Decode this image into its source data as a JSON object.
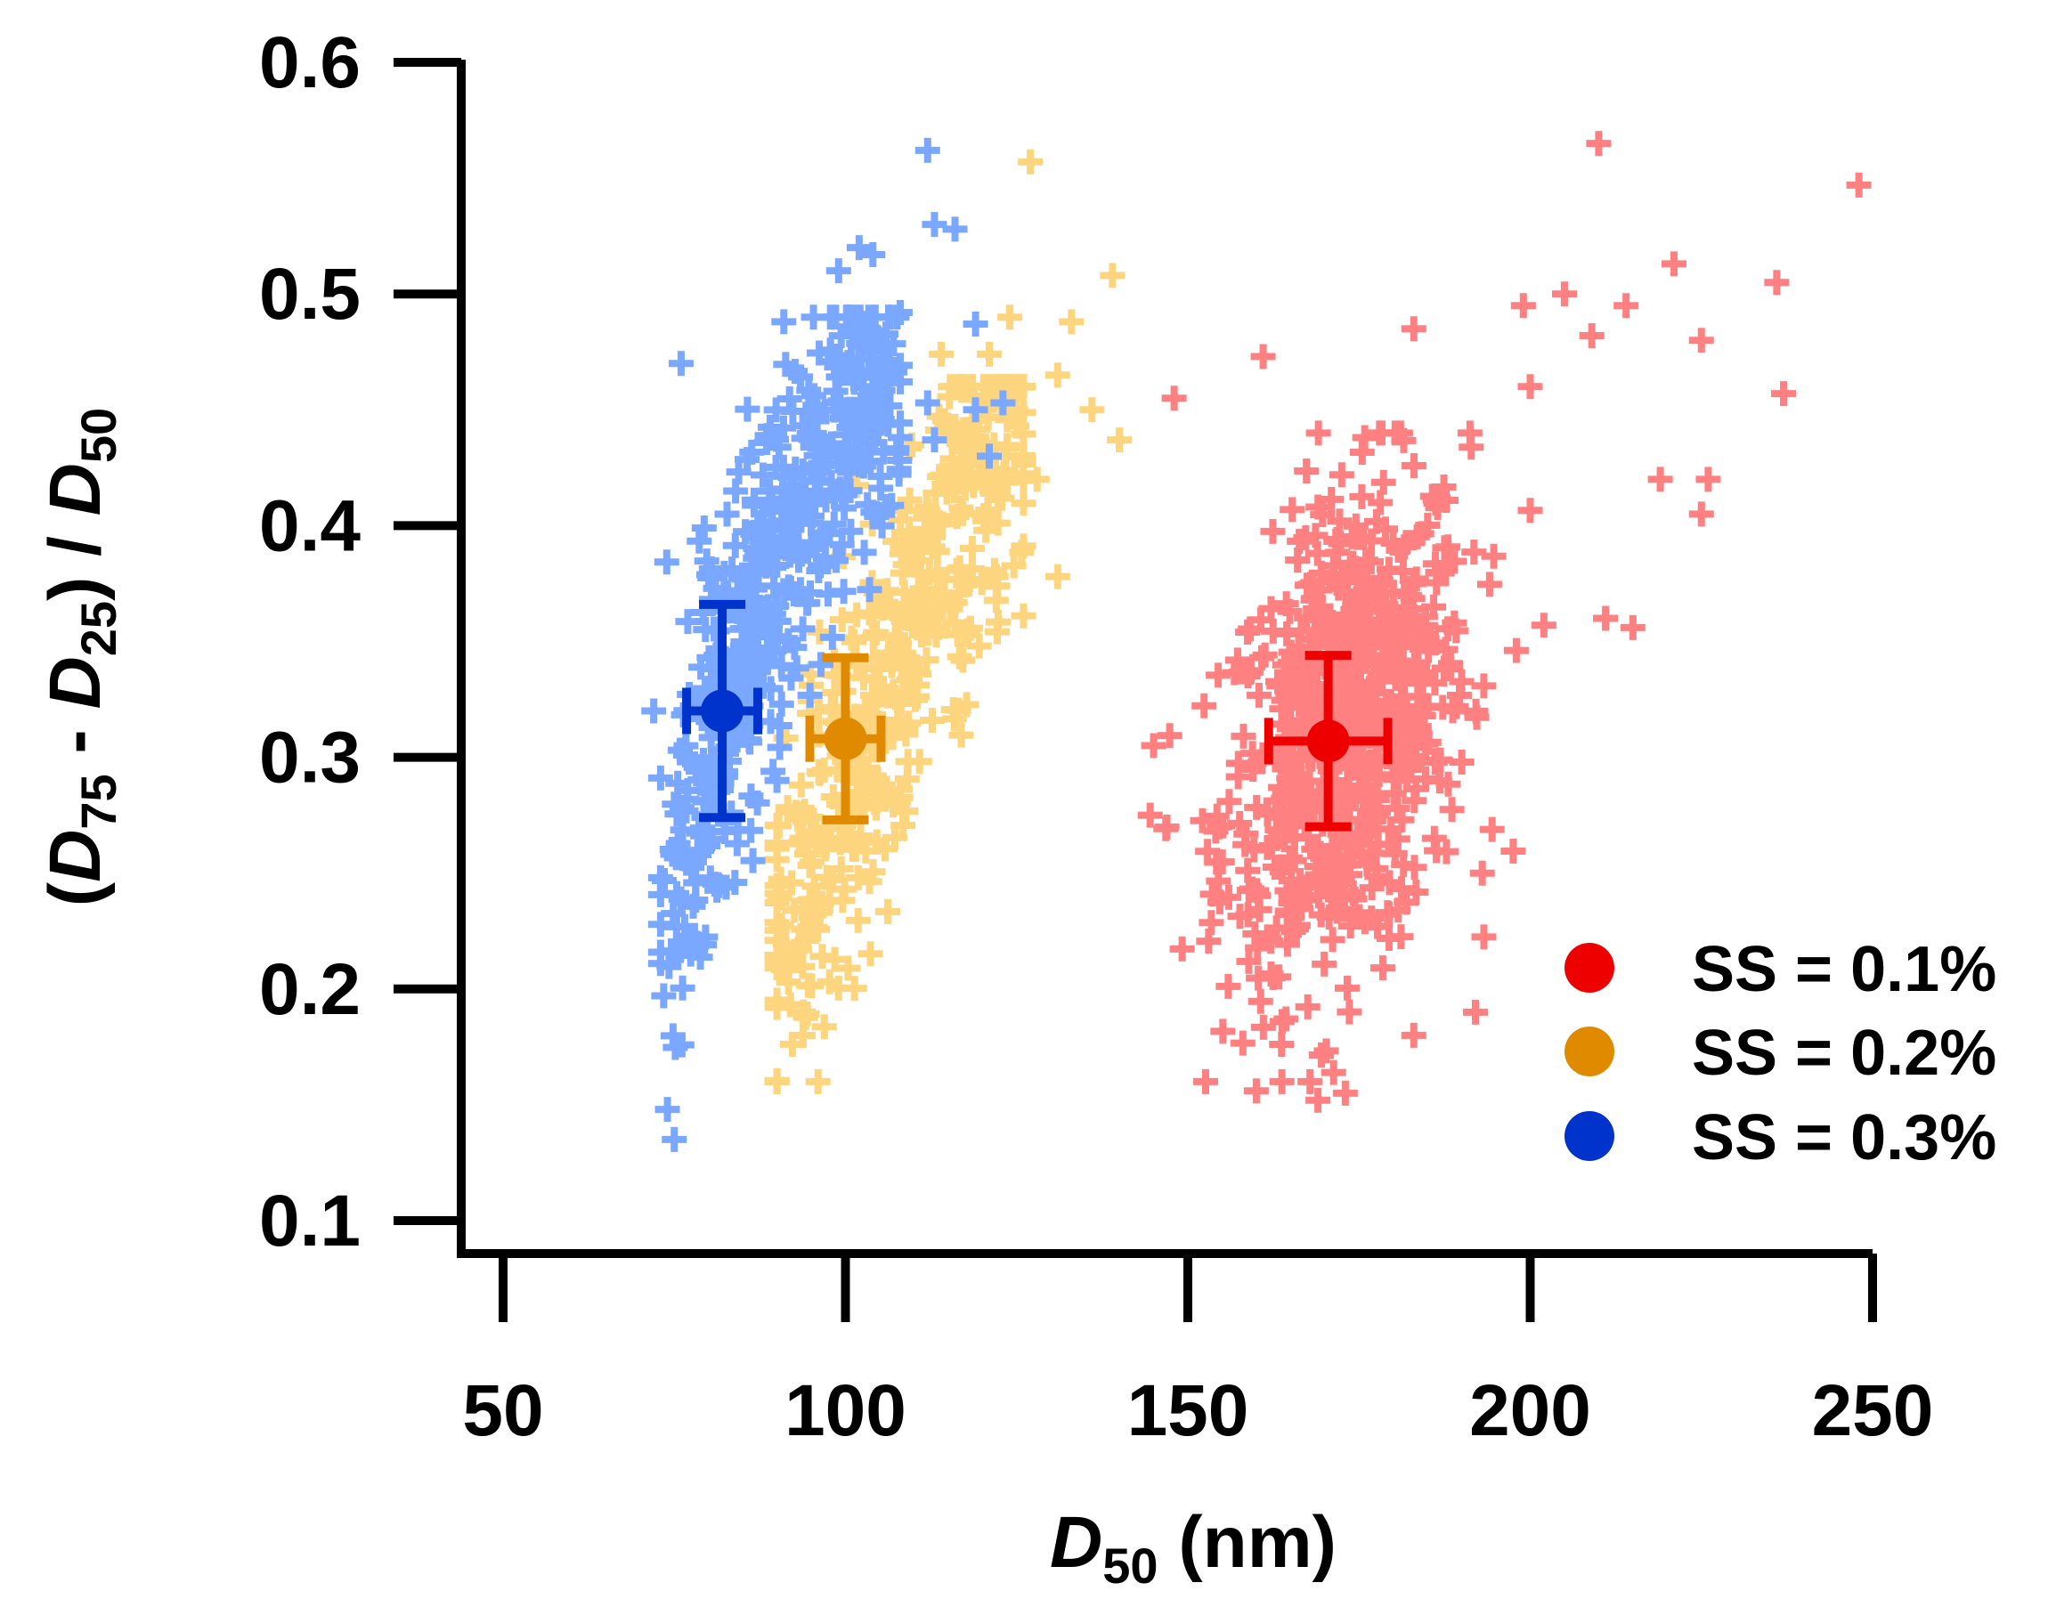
{
  "chart_data": {
    "type": "scatter",
    "title": "",
    "xlabel": {
      "italic": "D",
      "sub": "50",
      "unit": " (nm)"
    },
    "ylabel": {
      "open": "(",
      "d1": "D",
      "s1": "75",
      "minus": " - ",
      "d2": "D",
      "s2": "25",
      "close": ") / ",
      "d3": "D",
      "s3": "50"
    },
    "xlim": [
      45,
      250
    ],
    "ylim": [
      0.1,
      0.6
    ],
    "xticks": [
      50,
      100,
      150,
      200,
      250
    ],
    "xtick_labels": [
      "50",
      "100",
      "150",
      "200",
      "250"
    ],
    "yticks": [
      0.1,
      0.2,
      0.3,
      0.4,
      0.5,
      0.6
    ],
    "ytick_labels": [
      "0.1",
      "0.2",
      "0.3",
      "0.4",
      "0.5",
      "0.6"
    ],
    "series": [
      {
        "name": "SS = 0.1%",
        "scatter_color": "#ff8080",
        "mean_color": "#ee0000",
        "mean": {
          "x": 170.5,
          "y": 0.307,
          "xerr": 8.7,
          "yerr": 0.037
        },
        "cluster": {
          "x_range": [
            145,
            200
          ],
          "y_range": [
            0.16,
            0.44
          ],
          "center_x": 173,
          "center_y": 0.31,
          "count": 700
        },
        "points": [
          [
            144.5,
            0.275
          ],
          [
            148,
            0.455
          ],
          [
            161,
            0.473
          ],
          [
            178,
            0.44
          ],
          [
            183,
            0.485
          ],
          [
            199,
            0.495
          ],
          [
            200,
            0.46
          ],
          [
            205,
            0.5
          ],
          [
            209,
            0.482
          ],
          [
            210,
            0.565
          ],
          [
            214,
            0.495
          ],
          [
            221,
            0.513
          ],
          [
            225,
            0.48
          ],
          [
            236,
            0.505
          ],
          [
            237,
            0.457
          ],
          [
            248,
            0.547
          ],
          [
            160,
            0.156
          ],
          [
            169,
            0.152
          ],
          [
            173,
            0.155
          ],
          [
            183,
            0.18
          ],
          [
            192,
            0.19
          ],
          [
            211,
            0.36
          ],
          [
            215,
            0.356
          ],
          [
            219,
            0.42
          ],
          [
            225,
            0.405
          ],
          [
            226,
            0.42
          ],
          [
            202,
            0.357
          ],
          [
            193,
            0.25
          ],
          [
            186,
            0.265
          ]
        ]
      },
      {
        "name": "SS = 0.2%",
        "scatter_color": "#fdd57e",
        "mean_color": "#e08a00",
        "mean": {
          "x": 100,
          "y": 0.308,
          "xerr": 5.2,
          "yerr": 0.035
        },
        "cluster": {
          "x_range": [
            90,
            126
          ],
          "y_range": [
            0.16,
            0.46
          ],
          "center_x": 107,
          "center_y": 0.31,
          "count": 500
        },
        "points": [
          [
            127,
            0.557
          ],
          [
            139,
            0.508
          ],
          [
            133,
            0.488
          ],
          [
            124,
            0.49
          ],
          [
            114,
            0.474
          ],
          [
            121,
            0.474
          ],
          [
            140,
            0.437
          ],
          [
            136,
            0.45
          ],
          [
            131,
            0.465
          ],
          [
            131,
            0.378
          ],
          [
            122,
            0.378
          ],
          [
            96,
            0.16
          ],
          [
            128,
            0.42
          ]
        ]
      },
      {
        "name": "SS = 0.3%",
        "scatter_color": "#7aa7ff",
        "mean_color": "#0033cc",
        "mean": {
          "x": 82,
          "y": 0.32,
          "xerr": 5.2,
          "yerr": 0.046
        },
        "cluster": {
          "x_range": [
            73,
            108
          ],
          "y_range": [
            0.135,
            0.49
          ],
          "center_x": 86,
          "center_y": 0.32,
          "count": 550
        },
        "points": [
          [
            112,
            0.562
          ],
          [
            113,
            0.53
          ],
          [
            116,
            0.528
          ],
          [
            102,
            0.52
          ],
          [
            104,
            0.517
          ],
          [
            99,
            0.51
          ],
          [
            108,
            0.492
          ],
          [
            91,
            0.488
          ],
          [
            119,
            0.487
          ],
          [
            76,
            0.47
          ],
          [
            112,
            0.453
          ],
          [
            119,
            0.45
          ],
          [
            123,
            0.453
          ],
          [
            121,
            0.43
          ],
          [
            113,
            0.437
          ],
          [
            75,
            0.135
          ],
          [
            72,
            0.32
          ],
          [
            74,
            0.148
          ],
          [
            90,
            0.29
          ]
        ]
      }
    ],
    "legend": {
      "position": "bottom-right",
      "entries": [
        {
          "label": "SS = 0.1%",
          "color": "#ee0000"
        },
        {
          "label": "SS = 0.2%",
          "color": "#e08a00"
        },
        {
          "label": "SS = 0.3%",
          "color": "#0033cc"
        }
      ]
    },
    "grid": false
  }
}
